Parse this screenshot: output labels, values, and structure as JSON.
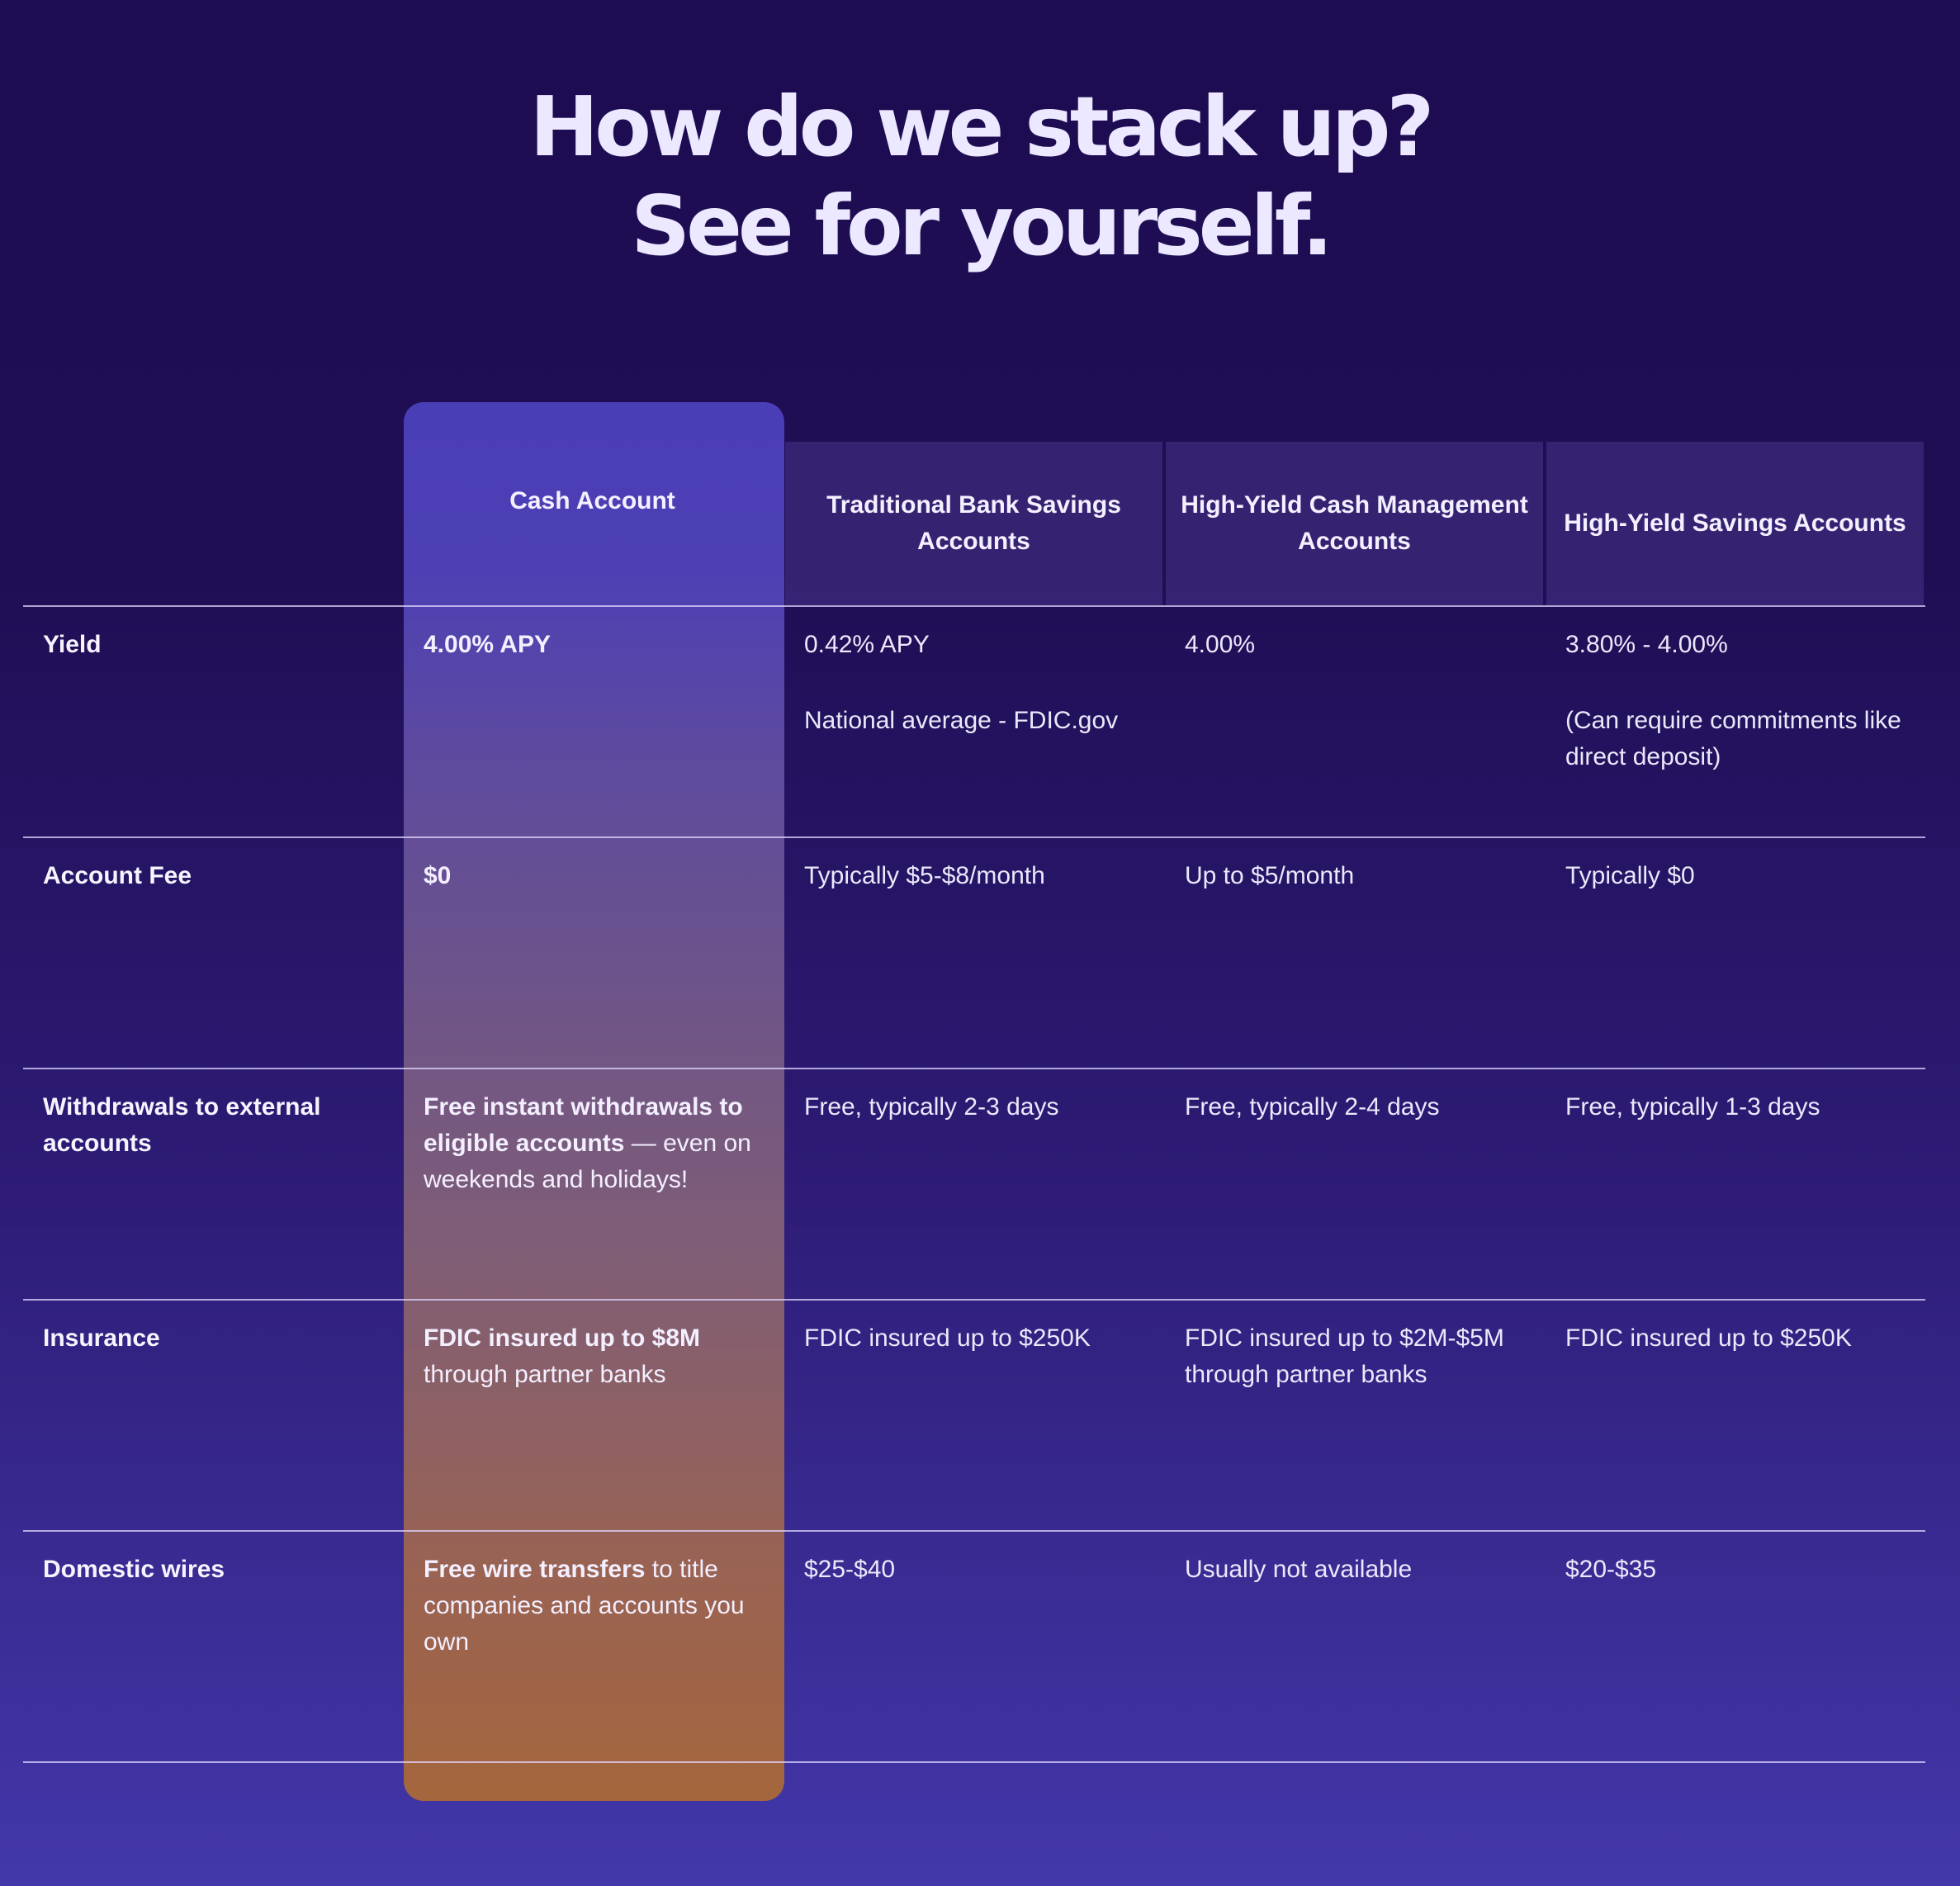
{
  "headline": {
    "line1": "How do we stack up?",
    "line2": "See for yourself."
  },
  "columns": [
    "Cash Account",
    "Traditional Bank Savings Accounts",
    "High-Yield Cash Management Accounts",
    "High-Yield Savings Accounts"
  ],
  "rows": [
    {
      "label": "Yield",
      "cash": {
        "bold": "4.00% APY",
        "rest": ""
      },
      "traditional": "0.42% APY",
      "traditional_note": "National average - FDIC.gov",
      "cash_mgmt": "4.00%",
      "savings": "3.80% - 4.00%",
      "savings_note": "(Can require commitments like direct deposit)"
    },
    {
      "label": "Account Fee",
      "cash": {
        "bold": "$0",
        "rest": ""
      },
      "traditional": "Typically $5-$8/month",
      "cash_mgmt": "Up to $5/month",
      "savings": "Typically $0"
    },
    {
      "label": "Withdrawals to external accounts",
      "cash": {
        "bold": "Free instant withdrawals to eligible accounts",
        "rest": " — even on weekends and holidays!"
      },
      "traditional": "Free, typically 2-3 days",
      "cash_mgmt": "Free, typically 2-4 days",
      "savings": "Free, typically 1-3 days"
    },
    {
      "label": "Insurance",
      "cash": {
        "bold": "FDIC insured up to $8M",
        "rest": " through partner banks"
      },
      "traditional": "FDIC insured up to $250K",
      "cash_mgmt": "FDIC insured up to $2M-$5M through partner banks",
      "savings": "FDIC insured up to $250K"
    },
    {
      "label": "Domestic wires",
      "cash": {
        "bold": "Free wire transfers",
        "rest": " to title companies and accounts you own"
      },
      "traditional": "$25-$40",
      "cash_mgmt": "Usually not available",
      "savings": "$20-$35"
    }
  ],
  "colors": {
    "background_top": "#1e0c52",
    "background_bottom": "#4338aa",
    "highlight_top": "#4a3eb7",
    "highlight_bottom": "#a4663c",
    "headline": "#ece8ff"
  }
}
